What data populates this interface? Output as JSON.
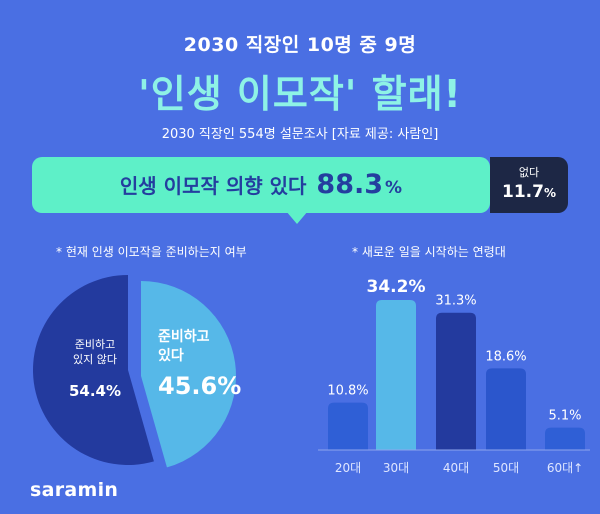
{
  "header": {
    "subtitle": "2030 직장인 10명 중 9명",
    "headline": "'인생 이모작' 할래!",
    "source": "2030 직장인 554명 설문조사 [자료 제공: 사람인]"
  },
  "intent": {
    "yes_label": "인생 이모작 의향 있다",
    "yes_value": "88.3",
    "yes_unit": "%",
    "no_label": "없다",
    "no_value": "11.7",
    "no_unit": "%"
  },
  "notes": {
    "left": "* 현재 인생 이모작을 준비하는지 여부",
    "right": "* 새로운 일을 시작하는 연령대"
  },
  "pie": {
    "no_label_line1": "준비하고",
    "no_label_line2": "있지 않다",
    "no_value": "54.4%",
    "yes_label_line1": "준비하고",
    "yes_label_line2": "있다",
    "yes_value": "45.6%"
  },
  "logo": "saramin",
  "colors": {
    "background": "#4a6fe3",
    "pill": "#5ef0c8",
    "dark_box": "#1d2745",
    "pie_not_preparing": "#233a9e",
    "pie_preparing": "#56b8e8",
    "bar_default": "#2f5fd6",
    "bar_highlight": "#56b8e8",
    "bar_dark": "#233a9e",
    "bar_mid": "#2b56cc"
  },
  "chart_data": [
    {
      "type": "pie",
      "categories": [
        "준비하고 있지 않다",
        "준비하고 있다"
      ],
      "values": [
        54.4,
        45.6
      ]
    },
    {
      "type": "bar",
      "categories": [
        "20대",
        "30대",
        "40대",
        "50대",
        "60대↑"
      ],
      "values": [
        10.8,
        34.2,
        31.3,
        18.6,
        5.1
      ],
      "value_labels": [
        "10.8%",
        "34.2%",
        "31.3%",
        "18.6%",
        "5.1%"
      ],
      "ylim": [
        0,
        34.2
      ]
    }
  ]
}
